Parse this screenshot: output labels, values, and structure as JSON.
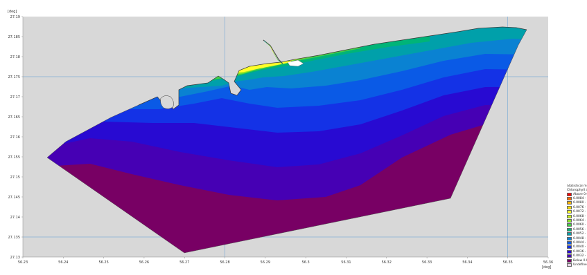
{
  "chart_data": {
    "type": "heatmap",
    "xlabel": "[deg]",
    "ylabel": "[deg]",
    "xlim": [
      56.23,
      56.36
    ],
    "ylim": [
      27.13,
      27.19
    ],
    "x_ticks": [
      "56.23",
      "56.24",
      "56.25",
      "56.26",
      "56.27",
      "56.28",
      "56.29",
      "56.3",
      "56.31",
      "56.32",
      "56.33",
      "56.34",
      "56.35",
      "56.36"
    ],
    "y_ticks": [
      "27.19",
      "27.185",
      "27.18",
      "27.175",
      "27.17",
      "27.165",
      "27.16",
      "27.155",
      "27.15",
      "27.145",
      "27.14",
      "27.135",
      "27.13"
    ],
    "grid": true,
    "legend_position": "bottom-right",
    "legend_title": [
      "Statistical mean:",
      "Chlorophyll a [mg"
    ],
    "legend": [
      {
        "label": "Above  0.0",
        "color": "#ff0000"
      },
      {
        "label": "0.0084 - 0.0",
        "color": "#ff6a00"
      },
      {
        "label": "0.0080 - 0.0",
        "color": "#ffb400"
      },
      {
        "label": "0.0076 - 0.0",
        "color": "#ffe100"
      },
      {
        "label": "0.0072 - 0.0",
        "color": "#ffff28"
      },
      {
        "label": "0.0068 - 0.0",
        "color": "#c8f01e"
      },
      {
        "label": "0.0064 - 0.0",
        "color": "#8ce628"
      },
      {
        "label": "0.0060 - 0.0",
        "color": "#46cd46"
      },
      {
        "label": "0.0056 - 0.0",
        "color": "#00b478"
      },
      {
        "label": "0.0052 - 0.0",
        "color": "#00a0aa"
      },
      {
        "label": "0.0048 - 0.0",
        "color": "#0a82d2"
      },
      {
        "label": "0.0044 - 0.0",
        "color": "#0a5ae6"
      },
      {
        "label": "0.0040 - 0.0",
        "color": "#1432e6"
      },
      {
        "label": "0.0036 - 0.0",
        "color": "#280ad2"
      },
      {
        "label": "0.0032 - 0.0",
        "color": "#4600b4"
      },
      {
        "label": "Below  0.0",
        "color": "#780064"
      },
      {
        "label": "Undefined V",
        "color": "#e6d2e6"
      }
    ],
    "colors": {
      "background": "#d8d8d8",
      "grid": "#5b9bd5",
      "land_gap": "#ffffff"
    }
  }
}
